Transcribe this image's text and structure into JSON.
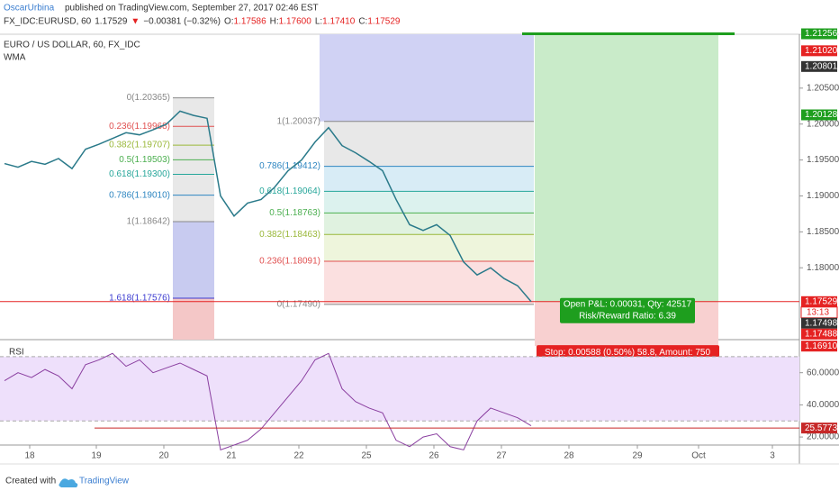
{
  "header": {
    "author": "OscarUrbina",
    "published": " published on TradingView.com, September 27, 2017 02:46 EST",
    "symbol": "FX_IDC:EURUSD, 60",
    "last": "1.17529",
    "arrow": "▼",
    "change": "−0.00381 (−0.32%)",
    "ohlc": [
      {
        "key": "O:",
        "val": "1.17586"
      },
      {
        "key": "H:",
        "val": "1.17600"
      },
      {
        "key": "L:",
        "val": "1.17410"
      },
      {
        "key": "C:",
        "val": "1.17529"
      }
    ]
  },
  "legend": {
    "name": "EURO / US DOLLAR, 60, FX_IDC",
    "indicator": "WMA"
  },
  "price_pane": {
    "ylim": [
      1.17,
      1.2125
    ],
    "close_color": "#2a7a8a",
    "yticks": [
      {
        "value": 1.205,
        "label": "1.20500"
      },
      {
        "value": 1.2,
        "label": "1.20000"
      },
      {
        "value": 1.195,
        "label": "1.19500"
      },
      {
        "value": 1.19,
        "label": "1.19000"
      },
      {
        "value": 1.185,
        "label": "1.18500"
      },
      {
        "value": 1.18,
        "label": "1.18000"
      }
    ],
    "close": [
      1.1945,
      1.194,
      1.1948,
      1.1944,
      1.1952,
      1.1938,
      1.1965,
      1.1972,
      1.198,
      1.1988,
      1.1985,
      1.1992,
      1.2,
      1.2018,
      1.2012,
      1.2008,
      1.19,
      1.1872,
      1.189,
      1.1895,
      1.1912,
      1.1935,
      1.195,
      1.1975,
      1.1995,
      1.197,
      1.196,
      1.1948,
      1.1935,
      1.1895,
      1.186,
      1.1852,
      1.186,
      1.1845,
      1.1808,
      1.179,
      1.18,
      1.1785,
      1.1775,
      1.1753
    ],
    "badges": [
      {
        "value": 1.21256,
        "label": "1.21256",
        "color": "#1e9e1e"
      },
      {
        "value": 1.2102,
        "label": "1.21020",
        "color": "#e52222"
      },
      {
        "value": 1.20801,
        "label": "1.20801",
        "color": "#333333"
      },
      {
        "value": 1.20128,
        "label": "1.20128",
        "color": "#1e9e1e"
      },
      {
        "value": 1.17529,
        "label": "1.17529",
        "color": "#e52222"
      },
      {
        "value": 1.17488,
        "label": "1.17488",
        "color": "#e52222"
      },
      {
        "value": 1.17498,
        "label": "1.17498",
        "color": "#333333"
      },
      {
        "value": 1.1691,
        "label": "1.16910",
        "color": "#e52222"
      }
    ],
    "countdown": "13:13"
  },
  "fib_left": [
    {
      "label": "0(1.20365)",
      "price": 1.20365
    },
    {
      "label": "0.236(1.19968)",
      "price": 1.19968
    },
    {
      "label": "0.382(1.19707)",
      "price": 1.19707
    },
    {
      "label": "0.5(1.19503)",
      "price": 1.19503
    },
    {
      "label": "0.618(1.19300)",
      "price": 1.193
    },
    {
      "label": "0.786(1.19010)",
      "price": 1.1901
    },
    {
      "label": "1(1.18642)",
      "price": 1.18642
    },
    {
      "label": "1.618(1.17576)",
      "price": 1.17576
    }
  ],
  "fib_right": [
    {
      "label": "1(1.20037)",
      "price": 1.20037
    },
    {
      "label": "0.786(1.19412)",
      "price": 1.19412
    },
    {
      "label": "0.618(1.19064)",
      "price": 1.19064
    },
    {
      "label": "0.5(1.18763)",
      "price": 1.18763
    },
    {
      "label": "0.382(1.18463)",
      "price": 1.18463
    },
    {
      "label": "0.236(1.18091)",
      "price": 1.18091
    },
    {
      "label": "0(1.17490)",
      "price": 1.1749
    }
  ],
  "position": {
    "entry": 1.17529,
    "target": 1.21256,
    "stop": 1.1691,
    "pnl": "Open P&L: 0.00031, Qty: 42517",
    "rr": "Risk/Reward Ratio: 6.39",
    "stop_text": "Stop: 0.00588 (0.50%) 58.8, Amount: 750"
  },
  "rsi": {
    "title": "RSI",
    "ylim": [
      15,
      80
    ],
    "band": [
      30,
      70
    ],
    "level": {
      "value": 25.5773,
      "label": "25.5773"
    },
    "yticks": [
      {
        "value": 60,
        "label": "60.0000"
      },
      {
        "value": 40,
        "label": "40.0000"
      },
      {
        "value": 20,
        "label": "20.0000"
      }
    ],
    "values": [
      55,
      60,
      57,
      62,
      58,
      50,
      65,
      68,
      72,
      64,
      68,
      60,
      63,
      66,
      62,
      58,
      12,
      15,
      18,
      25,
      35,
      45,
      55,
      68,
      72,
      50,
      42,
      38,
      35,
      18,
      14,
      20,
      22,
      14,
      12,
      30,
      38,
      35,
      32,
      27
    ]
  },
  "dates": [
    "18",
    "19",
    "20",
    "21",
    "22",
    "25",
    "26",
    "27",
    "28",
    "29",
    "Oct",
    "3"
  ],
  "footer": {
    "created": "Created with",
    "brand": "TradingView"
  }
}
